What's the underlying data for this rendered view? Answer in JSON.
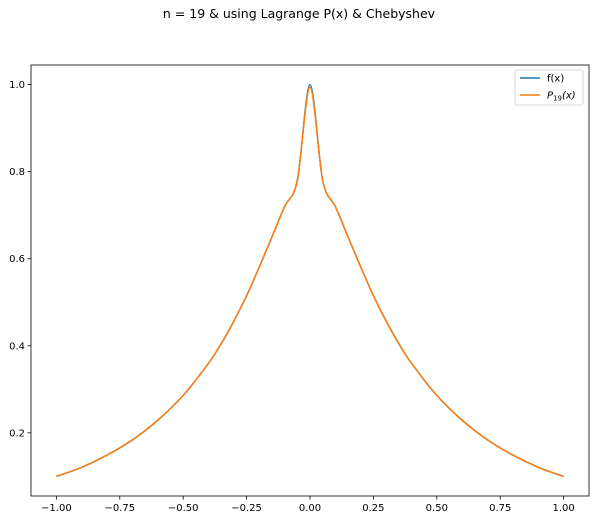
{
  "chart_data": {
    "type": "line",
    "title": "n = 19 & using Lagrange P(x) & Chebyshev",
    "xlabel": "",
    "ylabel": "",
    "xlim": [
      -1.1,
      1.1
    ],
    "ylim": [
      0.055,
      1.045
    ],
    "xticks": [
      -1.0,
      -0.75,
      -0.5,
      -0.25,
      0.0,
      0.25,
      0.5,
      0.75,
      1.0
    ],
    "xtick_labels": [
      "−1.00",
      "−0.75",
      "−0.50",
      "−0.25",
      "0.00",
      "0.25",
      "0.50",
      "0.75",
      "1.00"
    ],
    "yticks": [
      0.2,
      0.4,
      0.6,
      0.8,
      1.0
    ],
    "ytick_labels": [
      "0.2",
      "0.4",
      "0.6",
      "0.8",
      "1.0"
    ],
    "grid": false,
    "legend_position": "top-right",
    "series": [
      {
        "name": "f(x)",
        "color": "#1f77b4",
        "x": [
          -1.0,
          -0.9,
          -0.8,
          -0.7,
          -0.6,
          -0.5,
          -0.4,
          -0.35,
          -0.3,
          -0.25,
          -0.2,
          -0.15,
          -0.1,
          -0.05,
          0.0,
          0.05,
          0.1,
          0.15,
          0.2,
          0.25,
          0.3,
          0.35,
          0.4,
          0.5,
          0.6,
          0.7,
          0.8,
          0.9,
          1.0
        ],
        "y": [
          0.1,
          0.121,
          0.149,
          0.184,
          0.229,
          0.286,
          0.36,
          0.405,
          0.457,
          0.515,
          0.581,
          0.65,
          0.72,
          0.78,
          1.0,
          0.78,
          0.72,
          0.65,
          0.581,
          0.515,
          0.457,
          0.405,
          0.36,
          0.286,
          0.229,
          0.184,
          0.149,
          0.121,
          0.1
        ]
      },
      {
        "name_prefix": "P",
        "name_subscript": "19",
        "name_suffix": "(x)",
        "color": "#ff7f0e",
        "x": [
          -1.0,
          -0.9,
          -0.8,
          -0.7,
          -0.6,
          -0.5,
          -0.4,
          -0.35,
          -0.3,
          -0.25,
          -0.2,
          -0.15,
          -0.1,
          -0.05,
          0.0,
          0.05,
          0.1,
          0.15,
          0.2,
          0.25,
          0.3,
          0.35,
          0.4,
          0.5,
          0.6,
          0.7,
          0.8,
          0.9,
          1.0
        ],
        "y": [
          0.1,
          0.121,
          0.149,
          0.184,
          0.229,
          0.286,
          0.36,
          0.405,
          0.457,
          0.515,
          0.581,
          0.65,
          0.72,
          0.78,
          0.994,
          0.78,
          0.72,
          0.65,
          0.581,
          0.515,
          0.457,
          0.405,
          0.36,
          0.286,
          0.229,
          0.184,
          0.149,
          0.121,
          0.1
        ]
      }
    ]
  }
}
